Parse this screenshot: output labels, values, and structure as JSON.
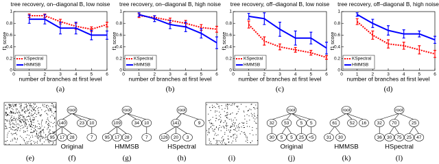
{
  "chart_data": [
    {
      "type": "line",
      "title": "tree recovery, on–diagonal B, low noise",
      "xlabel": "number of branches at first level",
      "ylabel": "f1 score",
      "caption": "(a)",
      "x": [
        1,
        2,
        3,
        4,
        5,
        6
      ],
      "xlim": [
        0,
        6
      ],
      "ylim": [
        0,
        1
      ],
      "xticks": [
        0,
        1,
        2,
        3,
        4,
        5,
        6
      ],
      "yticks": [
        0,
        0.2,
        0.4,
        0.6,
        0.8,
        1
      ],
      "legend": "lower left",
      "series": [
        {
          "name": "KSpectral",
          "color": "#ff0000",
          "dash": true,
          "values": [
            0.93,
            0.93,
            0.83,
            0.75,
            0.7,
            0.78
          ],
          "errors": [
            0.03,
            0.03,
            0.04,
            0.05,
            0.04,
            0.04
          ]
        },
        {
          "name": "HMMSB",
          "color": "#0000ff",
          "dash": false,
          "values": [
            0.87,
            0.87,
            0.72,
            0.72,
            0.6,
            0.6
          ],
          "errors": [
            0.07,
            0.08,
            0.1,
            0.1,
            0.08,
            0.07
          ]
        }
      ]
    },
    {
      "type": "line",
      "title": "tree recovery, on–diagonal B, high noise",
      "xlabel": "number of branches at first level",
      "ylabel": "f1 score",
      "caption": "(b)",
      "x": [
        1,
        2,
        3,
        4,
        5,
        6
      ],
      "xlim": [
        0,
        6
      ],
      "ylim": [
        0,
        1
      ],
      "xticks": [
        0,
        1,
        2,
        3,
        4,
        5,
        6
      ],
      "yticks": [
        0,
        0.2,
        0.4,
        0.6,
        0.8,
        1
      ],
      "legend": "lower left",
      "series": [
        {
          "name": "KSpectral",
          "color": "#ff0000",
          "dash": true,
          "values": [
            0.93,
            0.9,
            0.85,
            0.8,
            0.73,
            0.7
          ],
          "errors": [
            0.03,
            0.03,
            0.04,
            0.05,
            0.05,
            0.05
          ]
        },
        {
          "name": "HMMSB",
          "color": "#0000ff",
          "dash": false,
          "values": [
            0.95,
            0.88,
            0.78,
            0.74,
            0.63,
            0.47
          ],
          "errors": [
            0.03,
            0.05,
            0.07,
            0.08,
            0.08,
            0.1
          ]
        }
      ]
    },
    {
      "type": "line",
      "title": "tree recovery, off–diagonal B, low noise",
      "xlabel": "number of branches at first level",
      "ylabel": "f1 score",
      "caption": "(c)",
      "x": [
        1,
        2,
        3,
        4,
        5,
        6
      ],
      "xlim": [
        0,
        6
      ],
      "ylim": [
        0,
        1
      ],
      "xticks": [
        0,
        1,
        2,
        3,
        4,
        5,
        6
      ],
      "yticks": [
        0,
        0.2,
        0.4,
        0.6,
        0.8,
        1
      ],
      "legend": "lower left",
      "series": [
        {
          "name": "KSpectral",
          "color": "#ff0000",
          "dash": true,
          "values": [
            0.78,
            0.5,
            0.4,
            0.35,
            0.3,
            0.22
          ],
          "errors": [
            0.06,
            0.07,
            0.05,
            0.04,
            0.04,
            0.03
          ]
        },
        {
          "name": "HMMSB",
          "color": "#0000ff",
          "dash": false,
          "values": [
            0.92,
            0.88,
            0.7,
            0.55,
            0.55,
            0.38
          ],
          "errors": [
            0.05,
            0.1,
            0.12,
            0.12,
            0.1,
            0.1
          ]
        }
      ]
    },
    {
      "type": "line",
      "title": "tree recovery, off–diagonal B, high noise",
      "xlabel": "number of branches at first level",
      "ylabel": "f1 score",
      "caption": "(d)",
      "x": [
        1,
        2,
        3,
        4,
        5,
        6
      ],
      "xlim": [
        0,
        6
      ],
      "ylim": [
        0,
        1
      ],
      "xticks": [
        0,
        1,
        2,
        3,
        4,
        5,
        6
      ],
      "yticks": [
        0,
        0.2,
        0.4,
        0.6,
        0.8,
        1
      ],
      "legend": "lower left",
      "series": [
        {
          "name": "KSpectral",
          "color": "#ff0000",
          "dash": true,
          "values": [
            0.83,
            0.6,
            0.45,
            0.42,
            0.35,
            0.28
          ],
          "errors": [
            0.05,
            0.07,
            0.07,
            0.06,
            0.07,
            0.06
          ]
        },
        {
          "name": "HMMSB",
          "color": "#0000ff",
          "dash": false,
          "values": [
            0.95,
            0.8,
            0.68,
            0.62,
            0.62,
            0.52
          ],
          "errors": [
            0.03,
            0.07,
            0.08,
            0.07,
            0.05,
            0.06
          ]
        }
      ]
    }
  ],
  "matrices": [
    {
      "caption": "(e)"
    },
    {
      "caption": "(i)"
    }
  ],
  "trees": [
    {
      "name": "Original",
      "caption": "(f)",
      "root": {
        "label": "root",
        "children": [
          {
            "label": "140",
            "children": [
              {
                "label": "95"
              },
              {
                "label": "17"
              },
              {
                "label": "28"
              }
            ]
          },
          {
            "label": "23"
          },
          {
            "label": "10",
            "children": [
              {
                "label": "7"
              }
            ]
          }
        ]
      }
    },
    {
      "name": "HMMSB",
      "caption": "(g)",
      "root": {
        "label": "root",
        "children": [
          {
            "label": "109",
            "children": [
              {
                "label": "95"
              },
              {
                "label": "17"
              },
              {
                "label": "28"
              }
            ]
          },
          {
            "label": "34"
          },
          {
            "label": "10",
            "children": [
              {
                "label": "7"
              }
            ]
          }
        ]
      }
    },
    {
      "name": "HSpectral",
      "caption": "(h)",
      "root": {
        "label": "root",
        "children": [
          {
            "label": "141",
            "children": [
              {
                "label": "126"
              },
              {
                "label": "20"
              },
              {
                "label": "3"
              }
            ]
          },
          {
            "label": "9"
          }
        ]
      }
    },
    {
      "name": "Original",
      "caption": "(j)",
      "root": {
        "label": "root",
        "children": [
          {
            "label": "32",
            "children": [
              {
                "label": "30"
              }
            ]
          },
          {
            "label": "53",
            "children": [
              {
                "label": "5"
              },
              {
                "label": "5"
              }
            ]
          },
          {
            "label": "5",
            "children": [
              {
                "label": "25"
              }
            ]
          },
          {
            "label": "5",
            "children": [
              {
                "label": "<5"
              }
            ]
          }
        ]
      }
    },
    {
      "name": "HMMSB",
      "caption": "(k)",
      "root": {
        "label": "root",
        "children": [
          {
            "label": "61",
            "children": [
              {
                "label": "31"
              },
              {
                "label": "30"
              }
            ]
          },
          {
            "label": "52"
          },
          {
            "label": "16"
          }
        ]
      }
    },
    {
      "name": "HSpectral",
      "caption": "(l)",
      "root": {
        "label": "root",
        "children": [
          {
            "label": "32",
            "children": [
              {
                "label": "36"
              }
            ]
          },
          {
            "label": "70",
            "children": [
              {
                "label": "30"
              },
              {
                "label": "75"
              }
            ]
          },
          {
            "label": "25",
            "children": [
              {
                "label": "25"
              },
              {
                "label": "47"
              }
            ]
          }
        ]
      }
    }
  ]
}
